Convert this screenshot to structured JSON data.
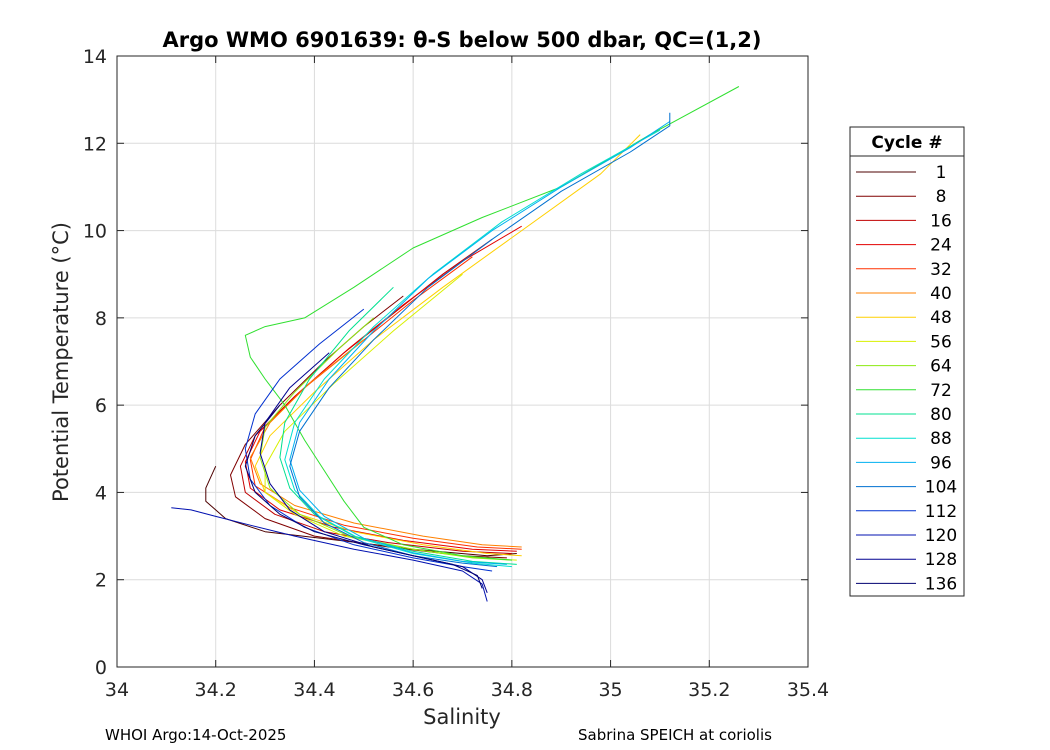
{
  "footer": {
    "left": "WHOI Argo:14-Oct-2025",
    "right": "Sabrina SPEICH at coriolis"
  },
  "chart_data": {
    "type": "line",
    "title": "Argo WMO 6901639: θ-S below 500 dbar,  QC=(1,2)",
    "xlabel": "Salinity",
    "ylabel": "Potential Temperature (°C)",
    "xlim": [
      34,
      35.4
    ],
    "ylim": [
      0,
      14
    ],
    "xticks": [
      34,
      34.2,
      34.4,
      34.6,
      34.8,
      35,
      35.2,
      35.4
    ],
    "xtick_labels": [
      "34",
      "34.2",
      "34.4",
      "34.6",
      "34.8",
      "35",
      "35.2",
      "35.4"
    ],
    "yticks": [
      0,
      2,
      4,
      6,
      8,
      10,
      12,
      14
    ],
    "ytick_labels": [
      "0",
      "2",
      "4",
      "6",
      "8",
      "10",
      "12",
      "14"
    ],
    "grid": true,
    "legend": {
      "title": "Cycle #",
      "placement": "outside-right",
      "entries": [
        {
          "label": "1",
          "color": "#4d0000"
        },
        {
          "label": "8",
          "color": "#800000"
        },
        {
          "label": "16",
          "color": "#c00000"
        },
        {
          "label": "24",
          "color": "#e30000"
        },
        {
          "label": "32",
          "color": "#ff3000"
        },
        {
          "label": "40",
          "color": "#ff8000"
        },
        {
          "label": "48",
          "color": "#ffd000"
        },
        {
          "label": "56",
          "color": "#d8f000"
        },
        {
          "label": "64",
          "color": "#8cea10"
        },
        {
          "label": "72",
          "color": "#30e030"
        },
        {
          "label": "80",
          "color": "#00e090"
        },
        {
          "label": "88",
          "color": "#00e0d0"
        },
        {
          "label": "96",
          "color": "#00b0f0"
        },
        {
          "label": "104",
          "color": "#0070d0"
        },
        {
          "label": "112",
          "color": "#0030d0"
        },
        {
          "label": "120",
          "color": "#0010b0"
        },
        {
          "label": "128",
          "color": "#000090"
        },
        {
          "label": "136",
          "color": "#000070"
        }
      ]
    },
    "series": [
      {
        "name": "1",
        "color": "#4d0000",
        "x": [
          34.81,
          34.75,
          34.6,
          34.45,
          34.3,
          34.22,
          34.18,
          34.18,
          34.2
        ],
        "y": [
          2.6,
          2.55,
          2.7,
          2.9,
          3.1,
          3.4,
          3.8,
          4.1,
          4.6
        ]
      },
      {
        "name": "8",
        "color": "#800000",
        "x": [
          34.79,
          34.7,
          34.55,
          34.4,
          34.3,
          34.24,
          34.23,
          34.26,
          34.33,
          34.42,
          34.5,
          34.58
        ],
        "y": [
          2.5,
          2.55,
          2.75,
          3.0,
          3.4,
          3.9,
          4.4,
          5.1,
          6.0,
          7.0,
          7.8,
          8.5
        ]
      },
      {
        "name": "16",
        "color": "#c00000",
        "x": [
          34.8,
          34.7,
          34.55,
          34.42,
          34.32,
          34.26,
          34.25,
          34.28,
          34.36,
          34.46,
          34.56,
          34.66,
          34.76
        ],
        "y": [
          2.6,
          2.65,
          2.85,
          3.1,
          3.5,
          4.0,
          4.6,
          5.3,
          6.2,
          7.2,
          8.1,
          9.0,
          9.8
        ]
      },
      {
        "name": "24",
        "color": "#e30000",
        "x": [
          34.81,
          34.72,
          34.58,
          34.44,
          34.33,
          34.27,
          34.26,
          34.29,
          34.37,
          34.47,
          34.58,
          34.7,
          34.82
        ],
        "y": [
          2.65,
          2.7,
          2.9,
          3.2,
          3.6,
          4.1,
          4.7,
          5.4,
          6.3,
          7.3,
          8.3,
          9.3,
          10.1
        ]
      },
      {
        "name": "32",
        "color": "#ff3000",
        "x": [
          34.82,
          34.73,
          34.6,
          34.46,
          34.35,
          34.28,
          34.27,
          34.3,
          34.38,
          34.49,
          34.6,
          34.72
        ],
        "y": [
          2.7,
          2.75,
          2.95,
          3.25,
          3.65,
          4.15,
          4.75,
          5.5,
          6.4,
          7.4,
          8.4,
          9.4
        ]
      },
      {
        "name": "40",
        "color": "#ff8000",
        "x": [
          34.82,
          34.74,
          34.62,
          34.48,
          34.36,
          34.29,
          34.27,
          34.31,
          34.39,
          34.5
        ],
        "y": [
          2.75,
          2.8,
          3.0,
          3.3,
          3.7,
          4.2,
          4.8,
          5.6,
          6.5,
          7.5
        ]
      },
      {
        "name": "48",
        "color": "#ffd000",
        "x": [
          34.82,
          34.75,
          34.62,
          34.48,
          34.37,
          34.3,
          34.28,
          34.31,
          34.4,
          34.52,
          34.66,
          34.82,
          34.98,
          35.06
        ],
        "y": [
          2.55,
          2.6,
          2.8,
          3.1,
          3.5,
          4.0,
          4.6,
          5.3,
          6.3,
          7.5,
          8.7,
          10.0,
          11.3,
          12.2
        ]
      },
      {
        "name": "56",
        "color": "#d8f000",
        "x": [
          34.81,
          34.73,
          34.6,
          34.46,
          34.36,
          34.3,
          34.3,
          34.34,
          34.44,
          34.56,
          34.7
        ],
        "y": [
          2.45,
          2.5,
          2.7,
          3.0,
          3.5,
          4.0,
          4.6,
          5.4,
          6.5,
          7.7,
          9.0
        ]
      },
      {
        "name": "64",
        "color": "#8cea10",
        "x": [
          34.8,
          34.72,
          34.6,
          34.47,
          34.37,
          34.31,
          34.29,
          34.3,
          34.36,
          34.45,
          34.52
        ],
        "y": [
          2.45,
          2.5,
          2.7,
          3.0,
          3.5,
          4.1,
          4.8,
          5.5,
          6.3,
          7.3,
          8.0
        ]
      },
      {
        "name": "72",
        "color": "#30e030",
        "x": [
          34.8,
          34.7,
          34.58,
          34.5,
          34.46,
          34.42,
          34.38,
          34.34,
          34.3,
          34.27,
          34.26,
          34.3,
          34.38,
          34.48,
          34.6,
          34.74,
          34.9,
          35.08,
          35.26
        ],
        "y": [
          2.45,
          2.55,
          2.8,
          3.2,
          3.8,
          4.5,
          5.2,
          6.0,
          6.6,
          7.1,
          7.6,
          7.8,
          8.0,
          8.7,
          9.6,
          10.3,
          11.0,
          12.2,
          13.3
        ]
      },
      {
        "name": "80",
        "color": "#00e090",
        "x": [
          34.81,
          34.72,
          34.6,
          34.48,
          34.4,
          34.35,
          34.33,
          34.34,
          34.39,
          34.47,
          34.56
        ],
        "y": [
          2.35,
          2.42,
          2.65,
          3.0,
          3.5,
          4.1,
          4.8,
          5.6,
          6.6,
          7.7,
          8.7
        ]
      },
      {
        "name": "88",
        "color": "#00e0d0",
        "x": [
          34.8,
          34.72,
          34.6,
          34.49,
          34.41,
          34.36,
          34.34,
          34.36,
          34.42,
          34.52,
          34.64,
          34.78,
          34.94,
          35.1
        ],
        "y": [
          2.3,
          2.38,
          2.6,
          2.95,
          3.45,
          4.05,
          4.75,
          5.6,
          6.6,
          7.8,
          9.0,
          10.2,
          11.3,
          12.3
        ]
      },
      {
        "name": "96",
        "color": "#00b0f0",
        "x": [
          34.79,
          34.7,
          34.6,
          34.5,
          34.42,
          34.37,
          34.35,
          34.37,
          34.43,
          34.52,
          34.63,
          34.76,
          34.9,
          35.04,
          35.12
        ],
        "y": [
          2.35,
          2.42,
          2.62,
          2.95,
          3.45,
          4.05,
          4.75,
          5.6,
          6.6,
          7.7,
          8.9,
          10.0,
          11.0,
          11.9,
          12.5
        ]
      },
      {
        "name": "104",
        "color": "#0070d0",
        "x": [
          34.77,
          34.7,
          34.6,
          34.5,
          34.42,
          34.37,
          34.35,
          34.37,
          34.43,
          34.52,
          34.63,
          34.76,
          34.9,
          35.04,
          35.12,
          35.12
        ],
        "y": [
          2.3,
          2.38,
          2.55,
          2.85,
          3.3,
          3.9,
          4.6,
          5.4,
          6.4,
          7.5,
          8.7,
          9.8,
          10.9,
          11.8,
          12.4,
          12.7
        ]
      },
      {
        "name": "112",
        "color": "#0030d0",
        "x": [
          34.76,
          34.7,
          34.6,
          34.48,
          34.38,
          34.31,
          34.27,
          34.26,
          34.28,
          34.33,
          34.41,
          34.5
        ],
        "y": [
          2.2,
          2.3,
          2.5,
          2.8,
          3.2,
          3.7,
          4.3,
          5.0,
          5.8,
          6.6,
          7.4,
          8.2
        ]
      },
      {
        "name": "120",
        "color": "#0010b0",
        "x": [
          34.75,
          34.74,
          34.7,
          34.6,
          34.48,
          34.36,
          34.27,
          34.2,
          34.15,
          34.11
        ],
        "y": [
          1.5,
          1.9,
          2.2,
          2.45,
          2.7,
          3.0,
          3.25,
          3.45,
          3.6,
          3.65
        ]
      },
      {
        "name": "128",
        "color": "#000090",
        "x": [
          34.75,
          34.74,
          34.7,
          34.62,
          34.52,
          34.42,
          34.35,
          34.31,
          34.29,
          34.3,
          34.35,
          34.43
        ],
        "y": [
          1.7,
          2.0,
          2.3,
          2.5,
          2.75,
          3.1,
          3.6,
          4.2,
          4.9,
          5.6,
          6.4,
          7.2
        ]
      },
      {
        "name": "136",
        "color": "#000070",
        "x": [
          34.74,
          34.73,
          34.68,
          34.6,
          34.5,
          34.4,
          34.33,
          34.28,
          34.26,
          34.28,
          34.33
        ],
        "y": [
          1.8,
          2.1,
          2.35,
          2.55,
          2.8,
          3.1,
          3.5,
          4.0,
          4.6,
          5.3,
          6.0
        ]
      }
    ]
  }
}
